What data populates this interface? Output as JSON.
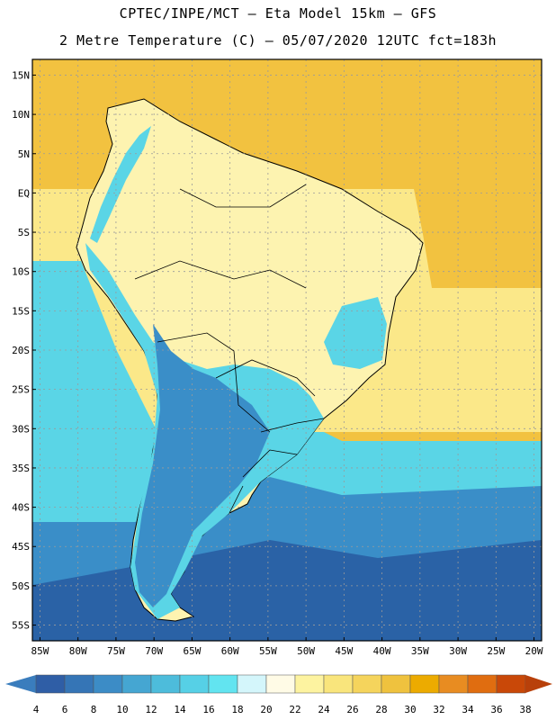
{
  "header": {
    "title": "CPTEC/INPE/MCT –  Eta Model 15km – GFS",
    "subtitle": "2 Metre Temperature (C) – 05/07/2020 12UTC fct=183h"
  },
  "map": {
    "lat_labels": [
      "15N",
      "10N",
      "5N",
      "EQ",
      "5S",
      "10S",
      "15S",
      "20S",
      "25S",
      "30S",
      "35S",
      "40S",
      "45S",
      "50S",
      "55S"
    ],
    "lon_labels": [
      "85W",
      "80W",
      "75W",
      "70W",
      "65W",
      "60W",
      "55W",
      "50W",
      "45W",
      "40W",
      "35W",
      "30W",
      "25W",
      "20W"
    ],
    "lat_values": [
      15,
      10,
      5,
      0,
      -5,
      -10,
      -15,
      -20,
      -25,
      -30,
      -35,
      -40,
      -45,
      -50,
      -55
    ],
    "lon_values": [
      -85,
      -80,
      -75,
      -70,
      -65,
      -60,
      -55,
      -50,
      -45,
      -40,
      -35,
      -30,
      -25,
      -20
    ],
    "extent": {
      "lon_min": -86,
      "lon_max": -19,
      "lat_min": -57,
      "lat_max": 17
    },
    "colors": {
      "ocean_warm": "#f2c240",
      "ocean_mild": "#fbe889",
      "land_warm": "#fdf3b0",
      "cool": "#5ad5e6",
      "cold": "#3a8ec8",
      "very_cold": "#2a62a6",
      "border": "#000000",
      "grid": "#9a9a9a"
    }
  },
  "legend": {
    "labels": [
      "4",
      "6",
      "8",
      "10",
      "12",
      "14",
      "16",
      "18",
      "20",
      "22",
      "24",
      "26",
      "28",
      "30",
      "32",
      "34",
      "36",
      "38"
    ],
    "colors": [
      "#2f5ea6",
      "#3575b6",
      "#3c8cc6",
      "#45a6d2",
      "#4dbcdb",
      "#56d0e6",
      "#62e4f0",
      "#d4f6fb",
      "#fffbe6",
      "#fdf3a0",
      "#f9e57c",
      "#f5d45c",
      "#efc23e",
      "#ecab00",
      "#e88c21",
      "#e06d10",
      "#c94808"
    ],
    "low_color": "#3a7dbd",
    "high_color": "#b8400a"
  }
}
